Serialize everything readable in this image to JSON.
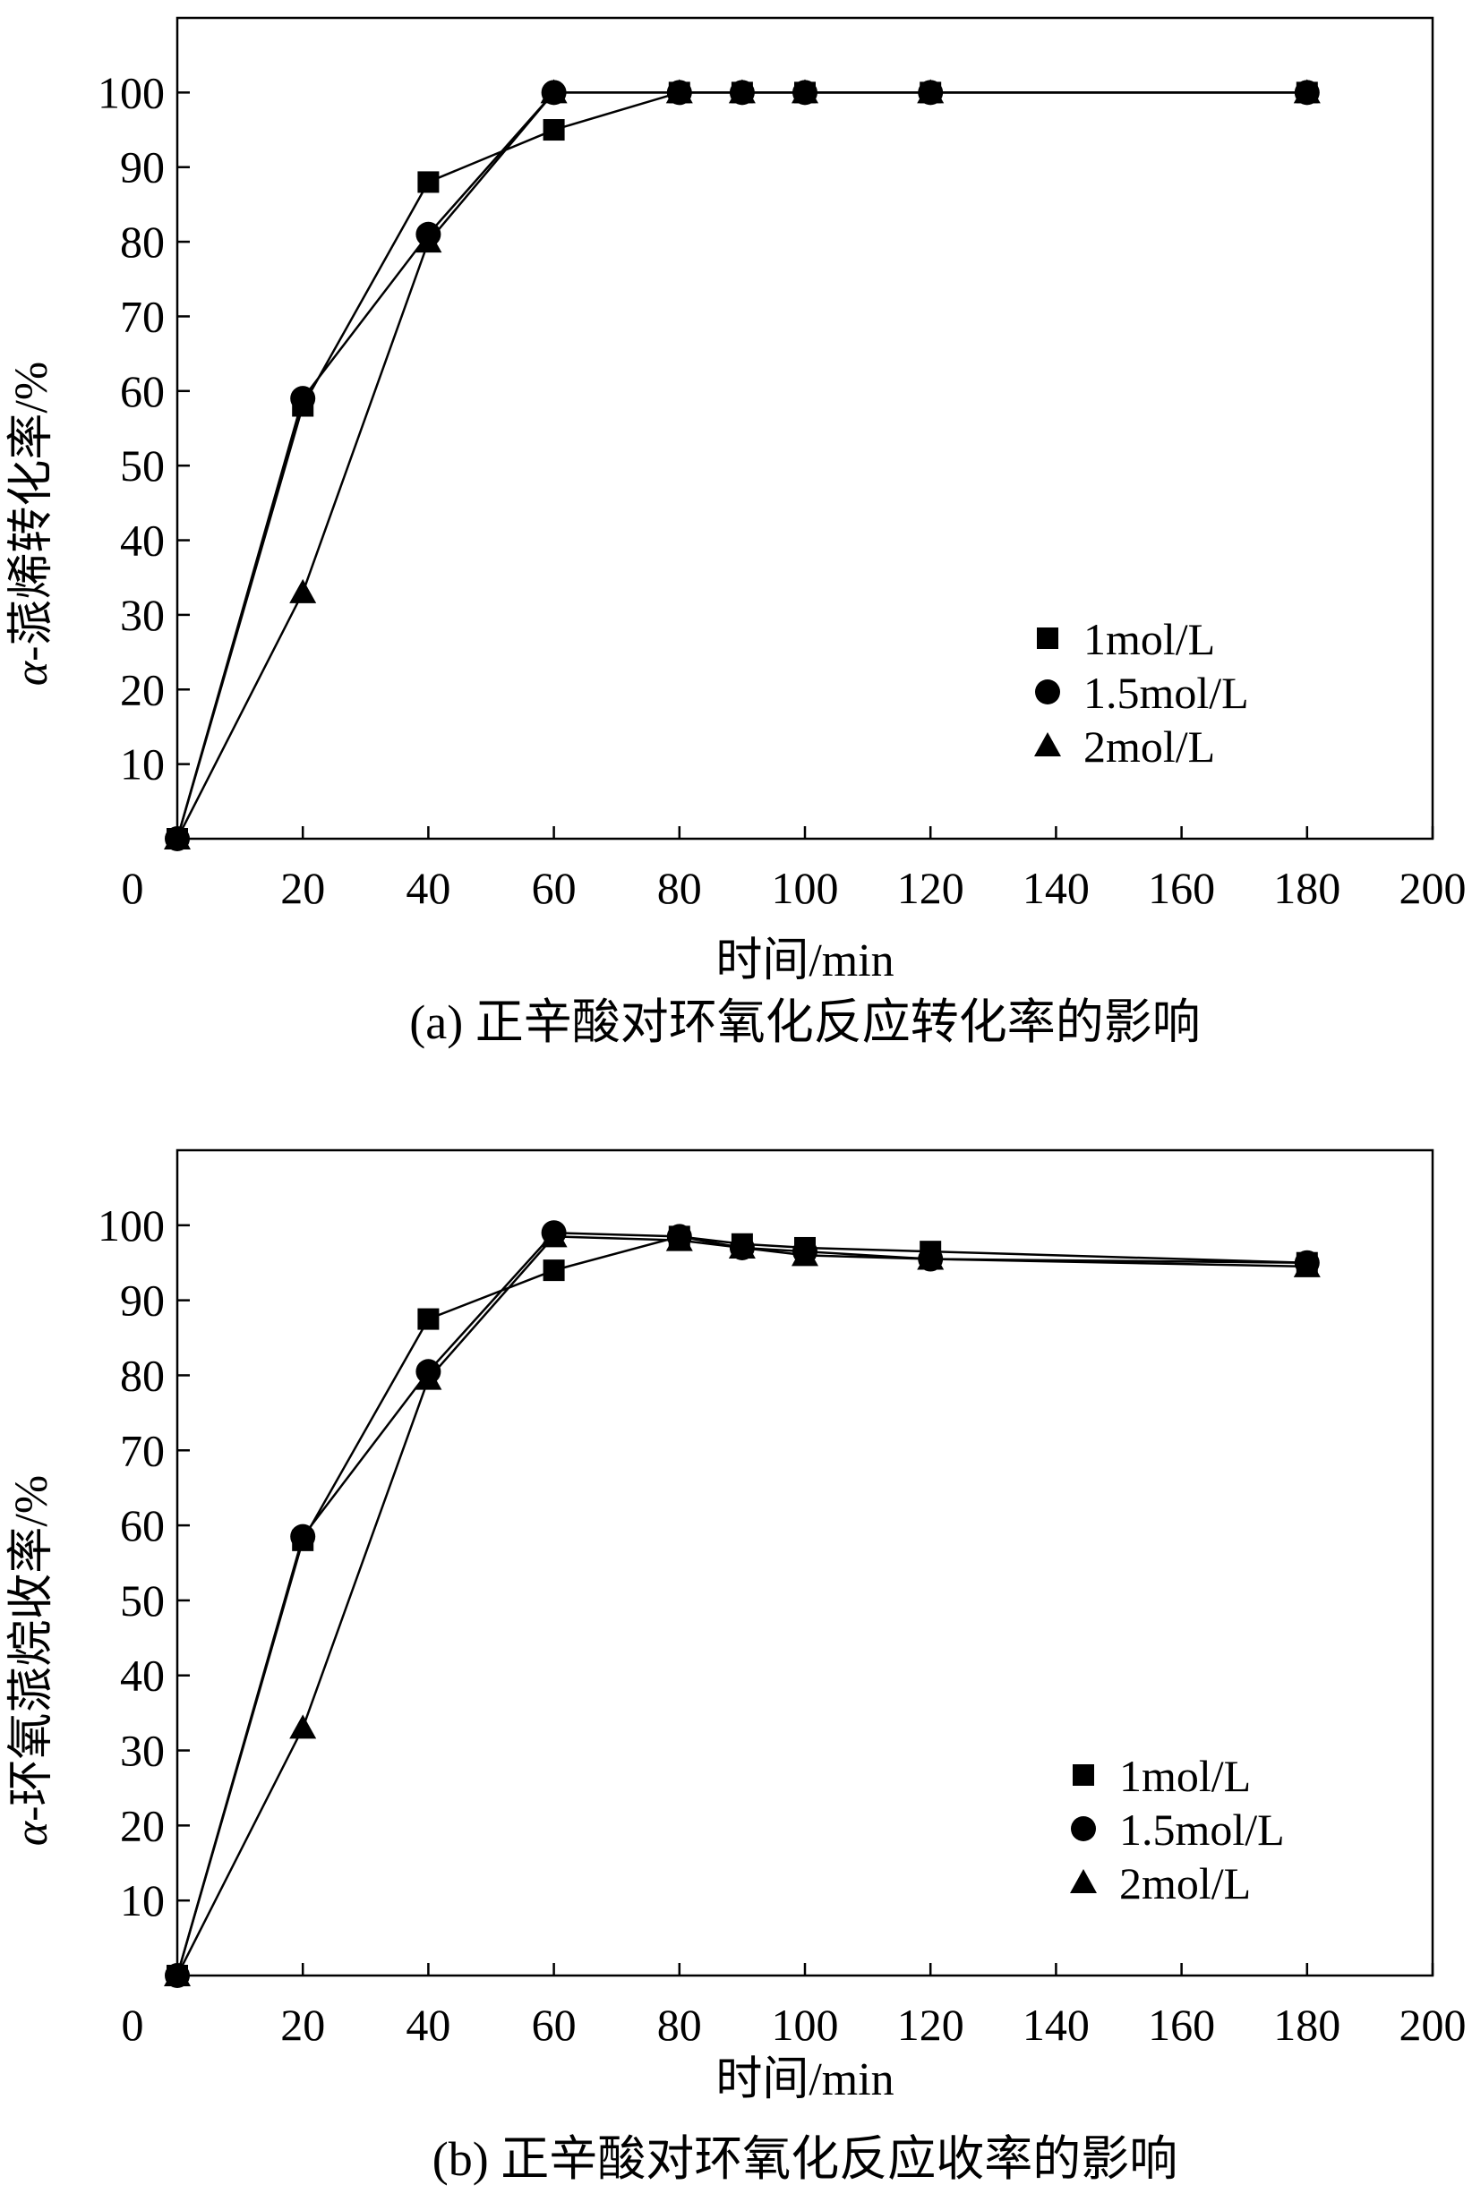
{
  "chart_data": [
    {
      "type": "line",
      "title": "(a) 正辛酸对环氧化反应转化率的影响",
      "xlabel": "时间/min",
      "ylabel_prefix": "α",
      "ylabel_rest": "-蒎烯转化率/%",
      "xlim": [
        0,
        200
      ],
      "ylim": [
        0,
        110
      ],
      "xticks": [
        20,
        40,
        60,
        80,
        100,
        120,
        140,
        160,
        180,
        200
      ],
      "yticks": [
        10,
        20,
        30,
        40,
        50,
        60,
        70,
        80,
        90,
        100
      ],
      "origin_label": "0",
      "grid": false,
      "legend_position": "right-middle",
      "series": [
        {
          "name": "1mol/L",
          "marker": "square",
          "x": [
            0,
            20,
            40,
            60,
            80,
            90,
            100,
            120,
            180
          ],
          "y": [
            0,
            58,
            88,
            95,
            100,
            100,
            100,
            100,
            100
          ]
        },
        {
          "name": "1.5mol/L",
          "marker": "circle",
          "x": [
            0,
            20,
            40,
            60,
            80,
            90,
            100,
            120,
            180
          ],
          "y": [
            0,
            59,
            81,
            100,
            100,
            100,
            100,
            100,
            100
          ]
        },
        {
          "name": "2mol/L",
          "marker": "triangle",
          "x": [
            0,
            20,
            40,
            60,
            80,
            90,
            100,
            120,
            180
          ],
          "y": [
            0,
            33,
            80,
            100,
            100,
            100,
            100,
            100,
            100
          ]
        }
      ]
    },
    {
      "type": "line",
      "title": "(b) 正辛酸对环氧化反应收率的影响",
      "xlabel": "时间/min",
      "ylabel_prefix": "α",
      "ylabel_rest": "-环氧蒎烷收率/%",
      "xlim": [
        0,
        200
      ],
      "ylim": [
        0,
        110
      ],
      "xticks": [
        20,
        40,
        60,
        80,
        100,
        120,
        140,
        160,
        180,
        200
      ],
      "yticks": [
        10,
        20,
        30,
        40,
        50,
        60,
        70,
        80,
        90,
        100
      ],
      "origin_label": "0",
      "grid": false,
      "legend_position": "right-middle",
      "series": [
        {
          "name": "1mol/L",
          "marker": "square",
          "x": [
            0,
            20,
            40,
            60,
            80,
            90,
            100,
            120,
            180
          ],
          "y": [
            0,
            58,
            87.5,
            94,
            98.5,
            97.5,
            97,
            96.5,
            95
          ]
        },
        {
          "name": "1.5mol/L",
          "marker": "circle",
          "x": [
            0,
            20,
            40,
            60,
            80,
            90,
            100,
            120,
            180
          ],
          "y": [
            0,
            58.5,
            80.5,
            99,
            98.5,
            97,
            96.5,
            95.5,
            95
          ]
        },
        {
          "name": "2mol/L",
          "marker": "triangle",
          "x": [
            0,
            20,
            40,
            60,
            80,
            90,
            100,
            120,
            180
          ],
          "y": [
            0,
            33,
            79.5,
            98.5,
            98,
            97,
            96,
            95.5,
            94.5
          ]
        }
      ]
    }
  ]
}
